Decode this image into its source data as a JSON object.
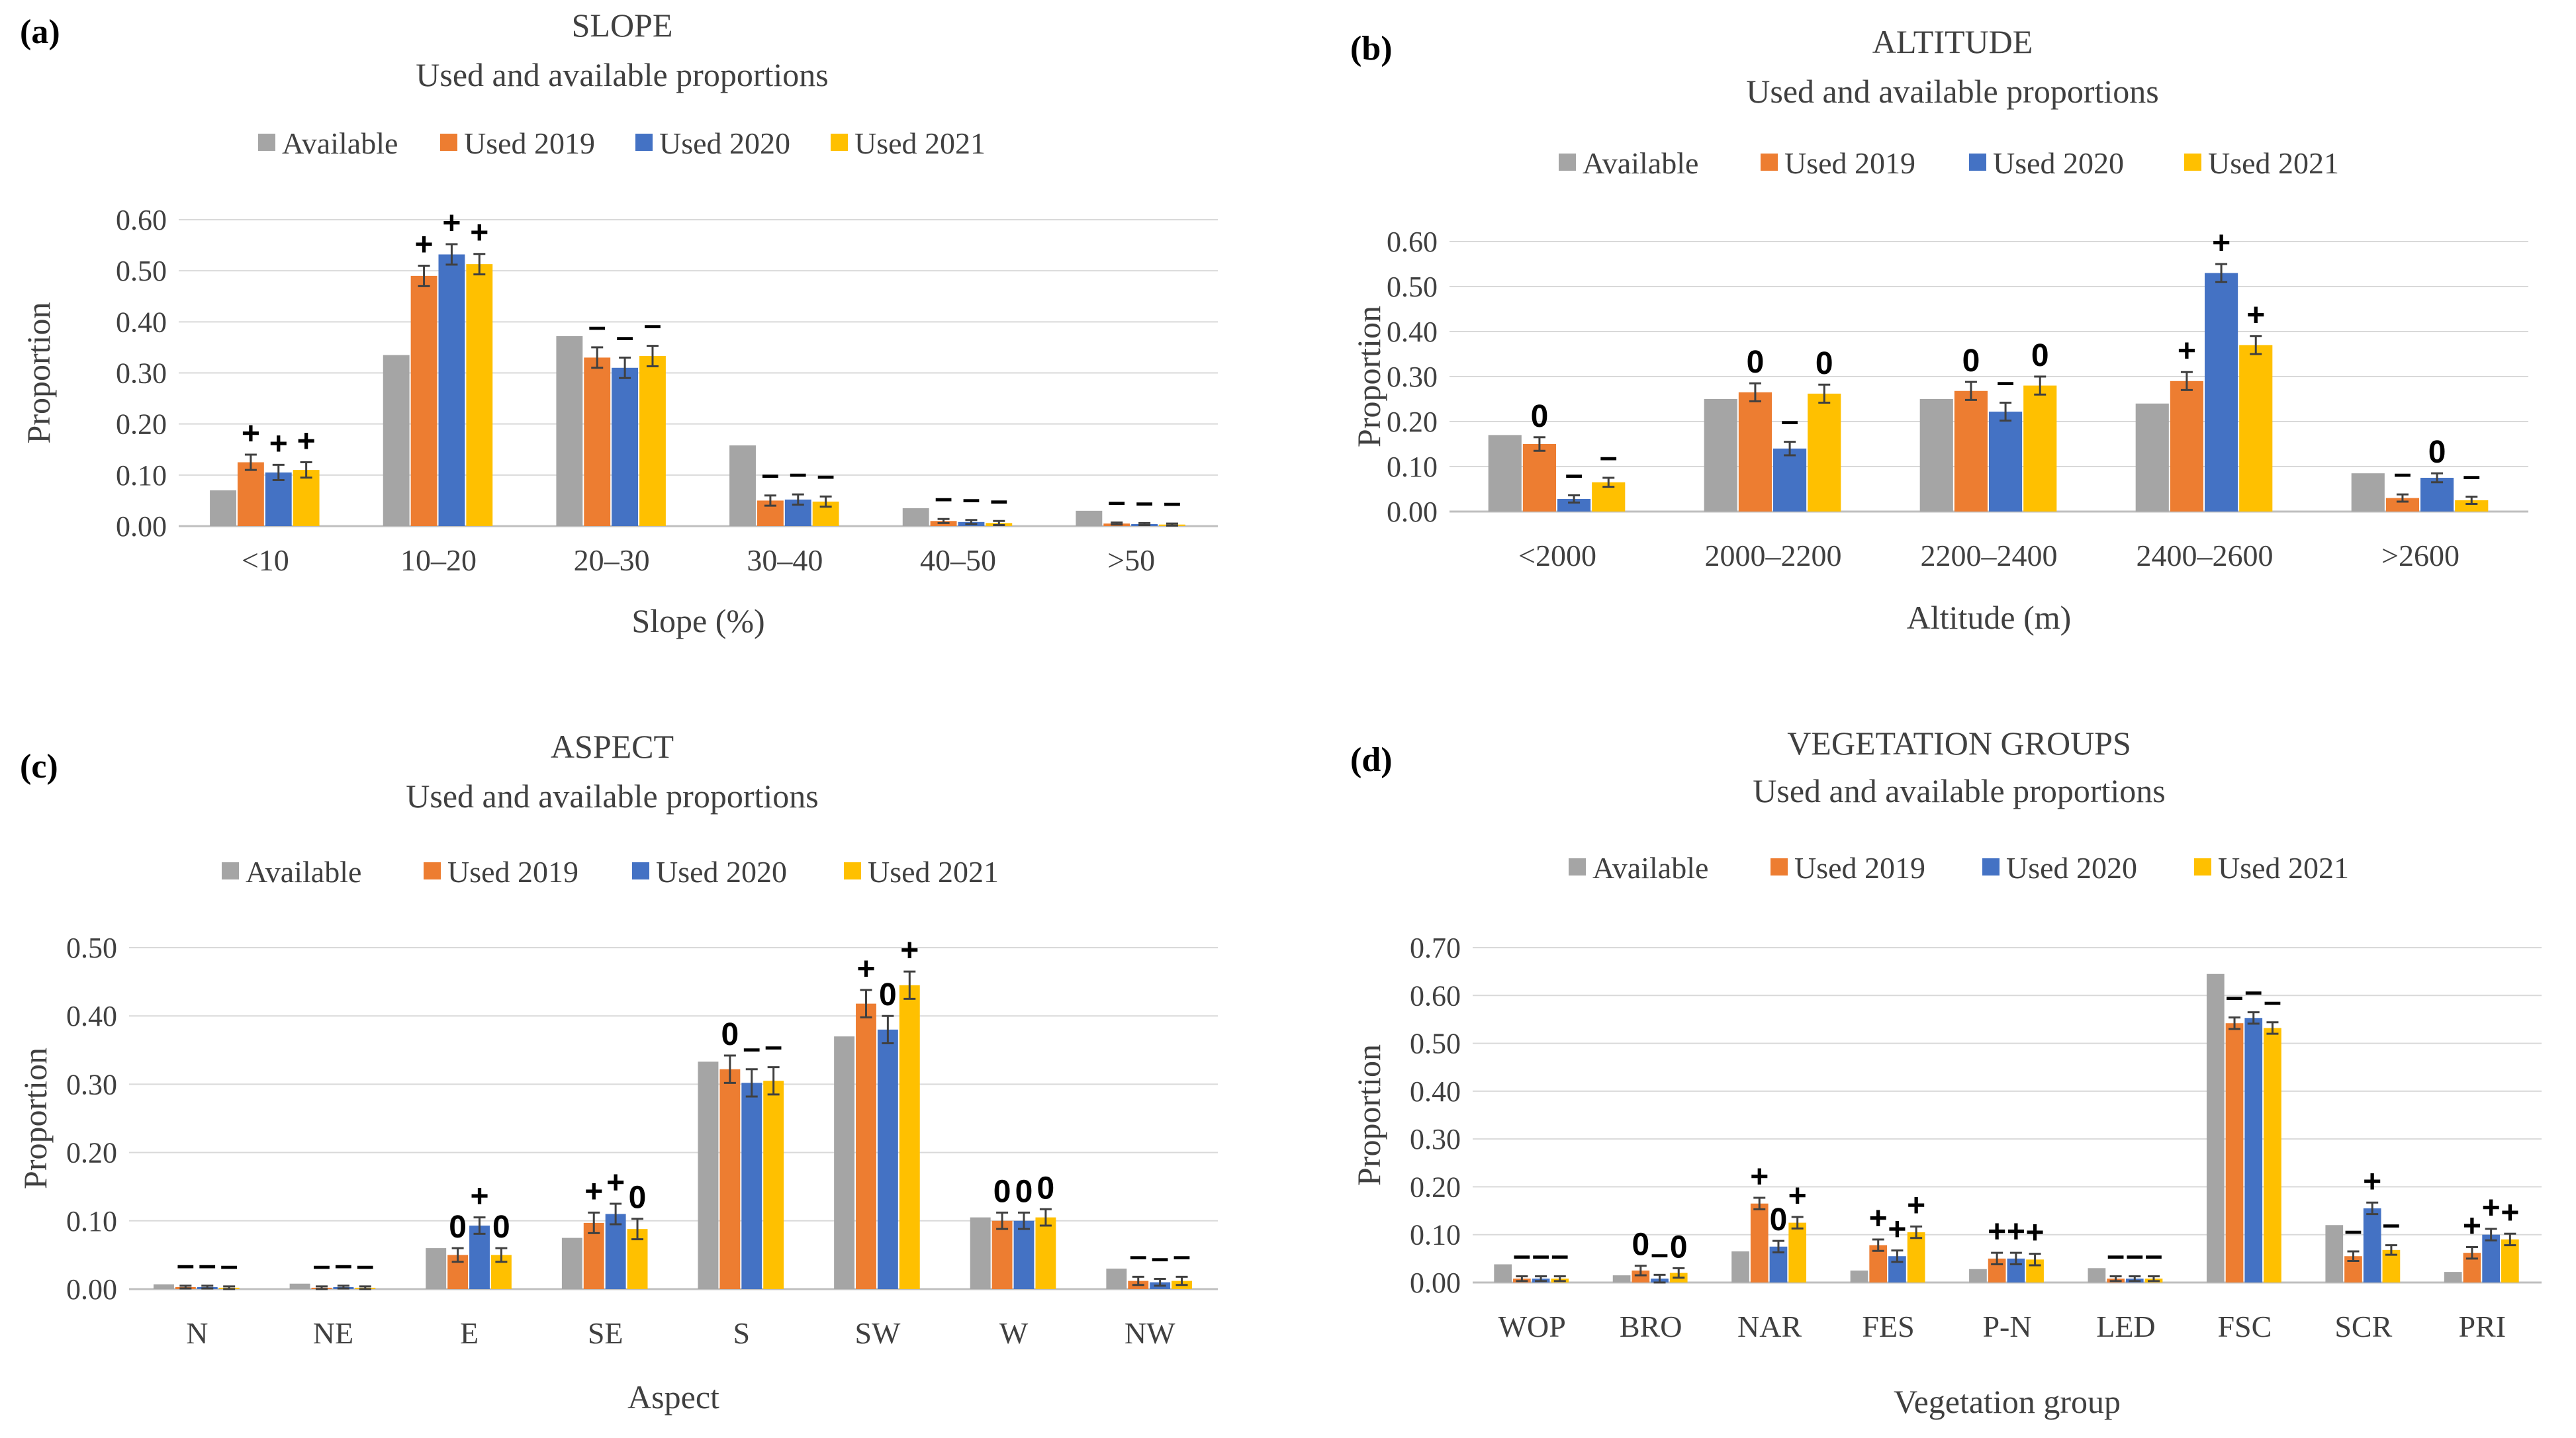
{
  "colors": {
    "available": "#a5a5a5",
    "used_2019": "#ed7d31",
    "used_2020": "#4472c4",
    "used_2021": "#ffc000",
    "grid": "#d9d9d9",
    "axis": "#bfbfbf",
    "text": "#404040"
  },
  "legend": [
    "Available",
    "Used 2019",
    "Used 2020",
    "Used 2021"
  ],
  "chart_data": [
    {
      "type": "bar",
      "panel": "(a)",
      "title": "SLOPE",
      "subtitle": "Used and available proportions",
      "xlabel": "Slope (%)",
      "ylabel": "Proportion",
      "ylim": [
        0,
        0.6
      ],
      "ytick_labels": [
        "0.00",
        "0.10",
        "0.20",
        "0.30",
        "0.40",
        "0.50",
        "0.60"
      ],
      "categories": [
        "<10",
        "10–20",
        "20–30",
        "30–40",
        "40–50",
        ">50"
      ],
      "series": [
        {
          "name": "Available",
          "values": [
            0.07,
            0.335,
            0.372,
            0.158,
            0.035,
            0.03
          ],
          "errors": [
            0,
            0,
            0,
            0,
            0,
            0
          ]
        },
        {
          "name": "Used 2019",
          "values": [
            0.125,
            0.49,
            0.33,
            0.05,
            0.01,
            0.005
          ],
          "errors": [
            0.015,
            0.02,
            0.02,
            0.01,
            0.004,
            0.002
          ]
        },
        {
          "name": "Used 2020",
          "values": [
            0.105,
            0.532,
            0.31,
            0.052,
            0.008,
            0.004
          ],
          "errors": [
            0.015,
            0.02,
            0.02,
            0.01,
            0.004,
            0.002
          ]
        },
        {
          "name": "Used 2021",
          "values": [
            0.11,
            0.513,
            0.333,
            0.048,
            0.006,
            0.003
          ],
          "errors": [
            0.015,
            0.02,
            0.02,
            0.01,
            0.004,
            0.002
          ]
        }
      ],
      "significance": [
        [
          "+",
          "+",
          "+"
        ],
        [
          "+",
          "+",
          "+"
        ],
        [
          "–",
          "–",
          "–"
        ],
        [
          "–",
          "–",
          "–"
        ],
        [
          "–",
          "–",
          "–"
        ],
        [
          "–",
          "–",
          "–"
        ]
      ]
    },
    {
      "type": "bar",
      "panel": "(b)",
      "title": "ALTITUDE",
      "subtitle": "Used and available proportions",
      "xlabel": "Altitude (m)",
      "ylabel": "Proportion",
      "ylim": [
        0,
        0.6
      ],
      "ytick_labels": [
        "0.00",
        "0.10",
        "0.20",
        "0.30",
        "0.40",
        "0.50",
        "0.60"
      ],
      "categories": [
        "<2000",
        "2000–2200",
        "2200–2400",
        "2400–2600",
        ">2600"
      ],
      "series": [
        {
          "name": "Available",
          "values": [
            0.17,
            0.25,
            0.25,
            0.24,
            0.085
          ],
          "errors": [
            0,
            0,
            0,
            0,
            0
          ]
        },
        {
          "name": "Used 2019",
          "values": [
            0.15,
            0.265,
            0.268,
            0.29,
            0.03
          ],
          "errors": [
            0.015,
            0.02,
            0.02,
            0.02,
            0.008
          ]
        },
        {
          "name": "Used 2020",
          "values": [
            0.028,
            0.14,
            0.222,
            0.53,
            0.075
          ],
          "errors": [
            0.008,
            0.015,
            0.02,
            0.02,
            0.01
          ]
        },
        {
          "name": "Used 2021",
          "values": [
            0.065,
            0.262,
            0.28,
            0.37,
            0.025
          ],
          "errors": [
            0.01,
            0.02,
            0.02,
            0.02,
            0.008
          ]
        }
      ],
      "significance": [
        [
          "0",
          "–",
          "–"
        ],
        [
          "0",
          "–",
          "0"
        ],
        [
          "0",
          "–",
          "0"
        ],
        [
          "+",
          "+",
          "+"
        ],
        [
          "–",
          "0",
          "–"
        ]
      ]
    },
    {
      "type": "bar",
      "panel": "(c)",
      "title": "ASPECT",
      "subtitle": "Used and available proportions",
      "xlabel": "Aspect",
      "ylabel": "Proportion",
      "ylim": [
        0,
        0.5
      ],
      "ytick_labels": [
        "0.00",
        "0.10",
        "0.20",
        "0.30",
        "0.40",
        "0.50"
      ],
      "categories": [
        "N",
        "NE",
        "E",
        "SE",
        "S",
        "SW",
        "W",
        "NW"
      ],
      "series": [
        {
          "name": "Available",
          "values": [
            0.007,
            0.008,
            0.06,
            0.075,
            0.333,
            0.37,
            0.105,
            0.03
          ],
          "errors": [
            0,
            0,
            0,
            0,
            0,
            0,
            0,
            0
          ]
        },
        {
          "name": "Used 2019",
          "values": [
            0.003,
            0.002,
            0.05,
            0.097,
            0.322,
            0.418,
            0.1,
            0.012
          ],
          "errors": [
            0.002,
            0.002,
            0.01,
            0.015,
            0.02,
            0.02,
            0.012,
            0.006
          ]
        },
        {
          "name": "Used 2020",
          "values": [
            0.003,
            0.003,
            0.093,
            0.11,
            0.302,
            0.38,
            0.1,
            0.01
          ],
          "errors": [
            0.002,
            0.002,
            0.012,
            0.015,
            0.02,
            0.02,
            0.012,
            0.005
          ]
        },
        {
          "name": "Used 2021",
          "values": [
            0.002,
            0.002,
            0.05,
            0.088,
            0.305,
            0.445,
            0.105,
            0.012
          ],
          "errors": [
            0.002,
            0.002,
            0.01,
            0.015,
            0.02,
            0.02,
            0.012,
            0.006
          ]
        }
      ],
      "significance": [
        [
          "–",
          "–",
          "–"
        ],
        [
          "–",
          "–",
          "–"
        ],
        [
          "0",
          "+",
          "0"
        ],
        [
          "+",
          "+",
          "0"
        ],
        [
          "0",
          "–",
          "–"
        ],
        [
          "+",
          "0",
          "+"
        ],
        [
          "0",
          "0",
          "0"
        ],
        [
          "–",
          "–",
          "–"
        ]
      ]
    },
    {
      "type": "bar",
      "panel": "(d)",
      "title": "VEGETATION GROUPS",
      "subtitle": "Used and available proportions",
      "xlabel": "Vegetation group",
      "ylabel": "Proportion",
      "ylim": [
        0,
        0.7
      ],
      "ytick_labels": [
        "0.00",
        "0.10",
        "0.20",
        "0.30",
        "0.40",
        "0.50",
        "0.60",
        "0.70"
      ],
      "categories": [
        "WOP",
        "BRO",
        "NAR",
        "FES",
        "P-N",
        "LED",
        "FSC",
        "SCR",
        "PRI"
      ],
      "series": [
        {
          "name": "Available",
          "values": [
            0.038,
            0.015,
            0.065,
            0.025,
            0.028,
            0.03,
            0.645,
            0.12,
            0.022
          ],
          "errors": [
            0,
            0,
            0,
            0,
            0,
            0,
            0,
            0,
            0
          ]
        },
        {
          "name": "Used 2019",
          "values": [
            0.008,
            0.025,
            0.165,
            0.078,
            0.05,
            0.008,
            0.542,
            0.055,
            0.062
          ],
          "errors": [
            0.005,
            0.01,
            0.012,
            0.012,
            0.012,
            0.005,
            0.012,
            0.01,
            0.012
          ]
        },
        {
          "name": "Used 2020",
          "values": [
            0.008,
            0.008,
            0.075,
            0.055,
            0.05,
            0.008,
            0.553,
            0.155,
            0.1
          ],
          "errors": [
            0.005,
            0.008,
            0.012,
            0.012,
            0.012,
            0.005,
            0.012,
            0.012,
            0.012
          ]
        },
        {
          "name": "Used 2021",
          "values": [
            0.008,
            0.02,
            0.125,
            0.105,
            0.048,
            0.008,
            0.532,
            0.068,
            0.09
          ],
          "errors": [
            0.005,
            0.01,
            0.012,
            0.012,
            0.012,
            0.005,
            0.012,
            0.01,
            0.012
          ]
        }
      ],
      "significance": [
        [
          "–",
          "–",
          "–"
        ],
        [
          "0",
          "–",
          "0"
        ],
        [
          "+",
          "0",
          "+"
        ],
        [
          "+",
          "+",
          "+"
        ],
        [
          "+",
          "+",
          "+"
        ],
        [
          "–",
          "–",
          "–"
        ],
        [
          "–",
          "–",
          "–"
        ],
        [
          "–",
          "+",
          "–"
        ],
        [
          "+",
          "+",
          "+"
        ]
      ]
    }
  ]
}
